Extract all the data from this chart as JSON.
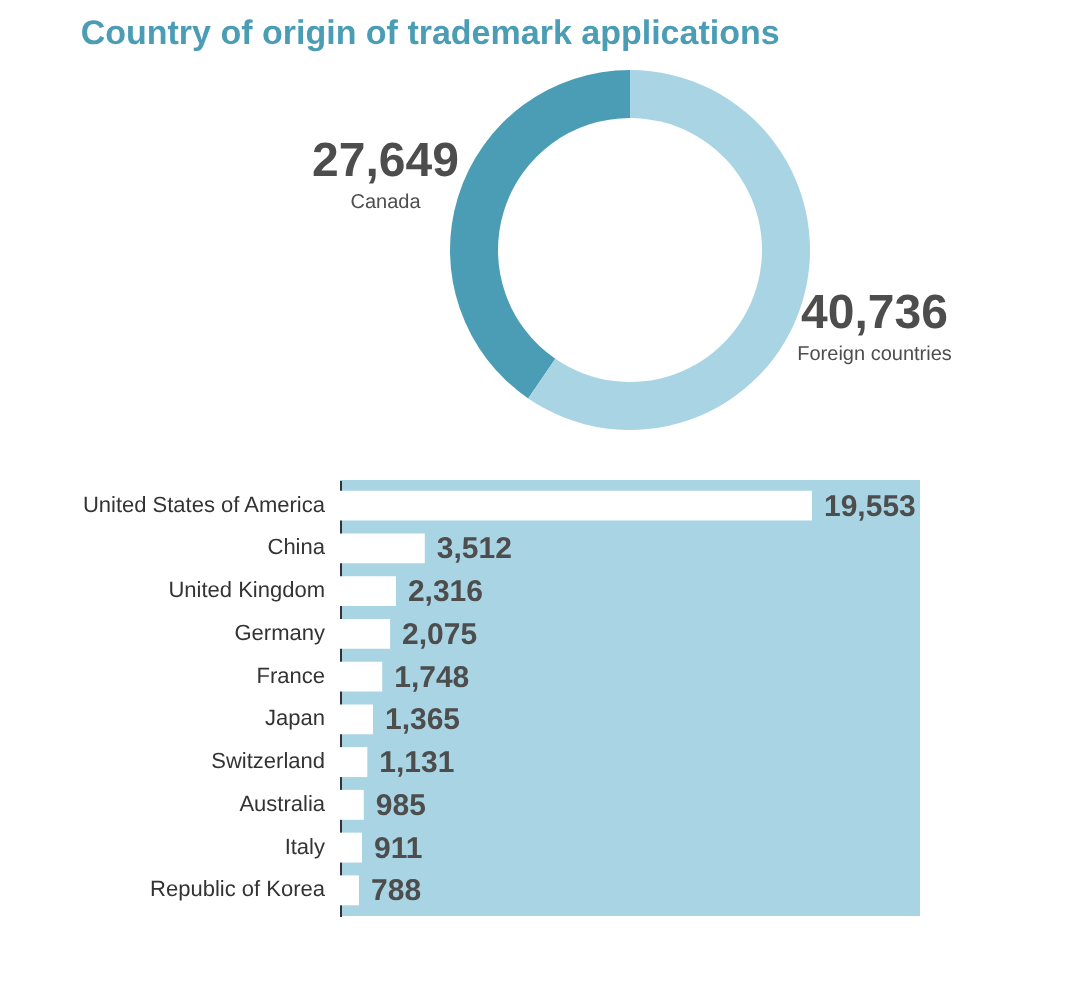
{
  "chart_data": [
    {
      "type": "donut",
      "title": "Country of origin of trademark applications",
      "categories": [
        "Canada",
        "Foreign countries"
      ],
      "values": [
        27649,
        40736
      ],
      "colors": [
        "#4a9db5",
        "#a9d4e4"
      ],
      "value_labels": [
        "27,649",
        "40,736"
      ]
    },
    {
      "type": "bar",
      "orientation": "horizontal",
      "categories": [
        "United States of America",
        "China",
        "United Kingdom",
        "Germany",
        "France",
        "Japan",
        "Switzerland",
        "Australia",
        "Italy",
        "Republic of Korea"
      ],
      "values": [
        19553,
        3512,
        2316,
        2075,
        1748,
        1365,
        1131,
        985,
        911,
        788
      ],
      "color": "#ffffff",
      "value_labels": [
        "19,553",
        "3,512",
        "2,316",
        "2,075",
        "1,748",
        "1,365",
        "1,131",
        "985",
        "911",
        "788"
      ]
    }
  ]
}
